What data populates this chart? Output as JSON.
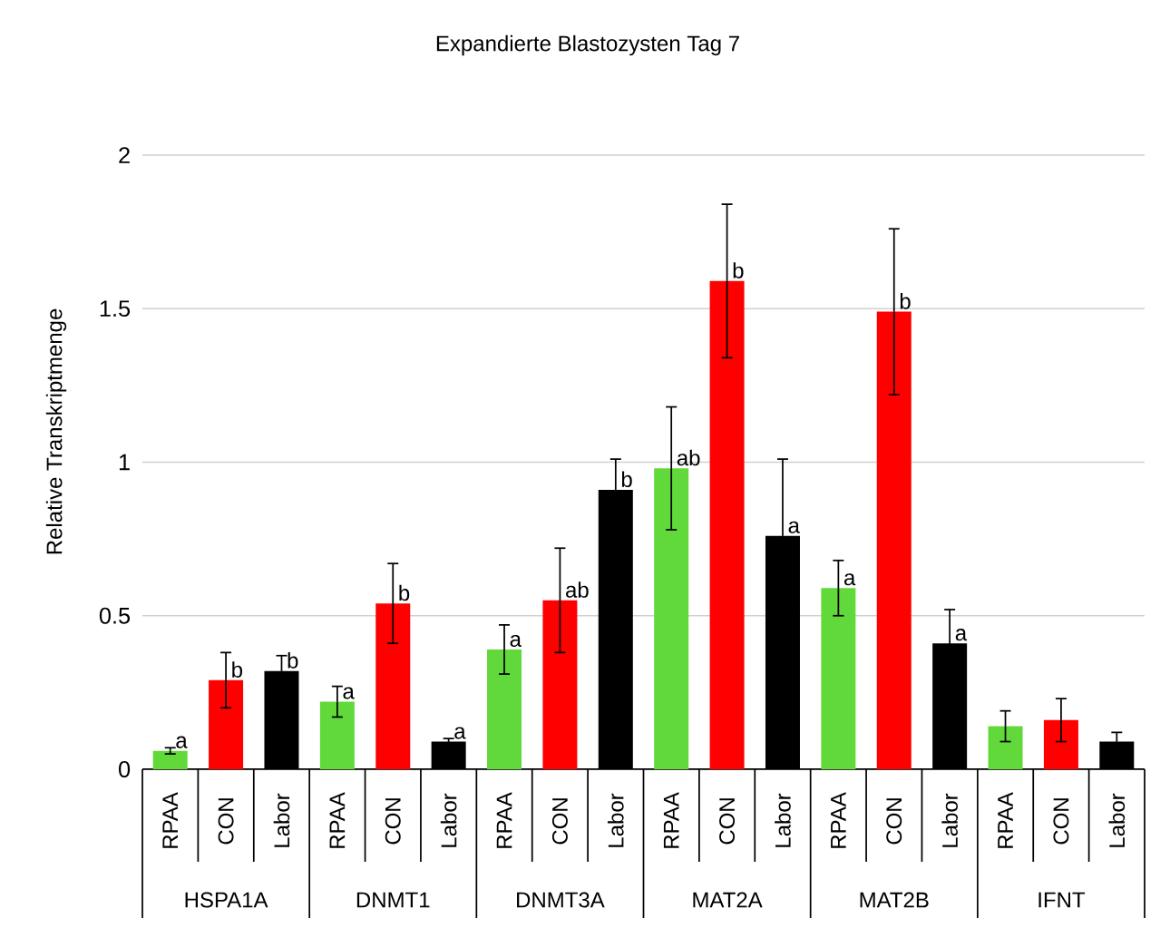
{
  "chart_data": {
    "type": "bar",
    "title": "Expandierte Blastozysten Tag 7",
    "ylabel": "Relative Transkriptmenge",
    "categories": [
      "HSPA1A",
      "DNMT1",
      "DNMT3A",
      "MAT2A",
      "MAT2B",
      "IFNT"
    ],
    "series": [
      {
        "name": "RPAA",
        "color": "#62d93a",
        "values": [
          0.06,
          0.22,
          0.39,
          0.98,
          0.59,
          0.14
        ],
        "errors": [
          0.01,
          0.05,
          0.08,
          0.2,
          0.09,
          0.05
        ],
        "value_labels": [
          "a",
          "a",
          "a",
          "ab",
          "a",
          null
        ]
      },
      {
        "name": "CON",
        "color": "#ff0000",
        "values": [
          0.29,
          0.54,
          0.55,
          1.59,
          1.49,
          0.16
        ],
        "errors": [
          0.09,
          0.13,
          0.17,
          0.25,
          0.27,
          0.07
        ],
        "value_labels": [
          "b",
          "b",
          "ab",
          "b",
          "b",
          null
        ]
      },
      {
        "name": "Labor",
        "color": "#000000",
        "values": [
          0.32,
          0.09,
          0.91,
          0.76,
          0.41,
          0.09
        ],
        "errors": [
          0.05,
          0.01,
          0.1,
          0.25,
          0.11,
          0.03
        ],
        "value_labels": [
          "b",
          "a",
          "b",
          "a",
          "a",
          null
        ]
      }
    ],
    "ylim": [
      0,
      2
    ],
    "yticks": [
      0,
      0.5,
      1,
      1.5,
      2
    ],
    "grid": "y"
  }
}
